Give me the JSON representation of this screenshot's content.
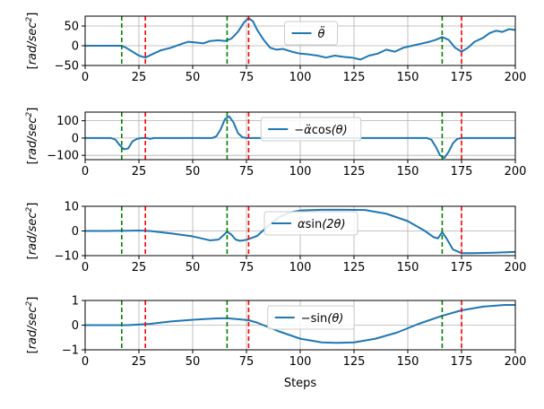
{
  "figure": {
    "xlabel": "Steps",
    "xlim": [
      0,
      200
    ],
    "xticks": [
      0,
      25,
      50,
      75,
      100,
      125,
      150,
      175,
      200
    ],
    "vlines_green": [
      17,
      66,
      166
    ],
    "vlines_red": [
      28,
      76,
      175
    ],
    "colors": {
      "series": "#1f77b4",
      "green_line": "#008000",
      "red_line": "#ff0000",
      "grid": "#b0b0b0"
    }
  },
  "chart_data": [
    {
      "type": "line",
      "ylabel": "[rad/sec^2]",
      "ylim": [
        -50,
        75
      ],
      "yticks": [
        -50,
        0,
        50
      ],
      "legend": {
        "label": "θ̈",
        "placement": "top-center"
      },
      "grid": true,
      "series": [
        {
          "name": "θ̈",
          "points": [
            [
              0,
              0
            ],
            [
              10,
              0
            ],
            [
              17,
              0
            ],
            [
              19,
              -5
            ],
            [
              22,
              -15
            ],
            [
              25,
              -25
            ],
            [
              28,
              -30
            ],
            [
              31,
              -22
            ],
            [
              35,
              -12
            ],
            [
              40,
              -5
            ],
            [
              45,
              5
            ],
            [
              48,
              10
            ],
            [
              52,
              8
            ],
            [
              55,
              6
            ],
            [
              58,
              12
            ],
            [
              62,
              14
            ],
            [
              65,
              12
            ],
            [
              68,
              18
            ],
            [
              71,
              35
            ],
            [
              74,
              60
            ],
            [
              76,
              70
            ],
            [
              78,
              62
            ],
            [
              80,
              40
            ],
            [
              83,
              15
            ],
            [
              86,
              -5
            ],
            [
              89,
              -10
            ],
            [
              92,
              -8
            ],
            [
              96,
              -15
            ],
            [
              100,
              -20
            ],
            [
              104,
              -22
            ],
            [
              108,
              -25
            ],
            [
              112,
              -30
            ],
            [
              116,
              -25
            ],
            [
              120,
              -28
            ],
            [
              124,
              -30
            ],
            [
              128,
              -35
            ],
            [
              132,
              -25
            ],
            [
              136,
              -20
            ],
            [
              140,
              -10
            ],
            [
              144,
              -15
            ],
            [
              148,
              -5
            ],
            [
              152,
              0
            ],
            [
              156,
              5
            ],
            [
              160,
              10
            ],
            [
              163,
              15
            ],
            [
              166,
              22
            ],
            [
              169,
              15
            ],
            [
              172,
              -5
            ],
            [
              175,
              -15
            ],
            [
              178,
              -5
            ],
            [
              181,
              10
            ],
            [
              185,
              20
            ],
            [
              188,
              32
            ],
            [
              191,
              38
            ],
            [
              194,
              35
            ],
            [
              197,
              42
            ],
            [
              200,
              40
            ]
          ]
        }
      ]
    },
    {
      "type": "line",
      "ylabel": "[rad/sec^2]",
      "ylim": [
        -125,
        150
      ],
      "yticks": [
        -100,
        0,
        100
      ],
      "legend": {
        "label": "−α̈cos(θ)",
        "placement": "top-center"
      },
      "grid": true,
      "series": [
        {
          "name": "−α̈cos(θ)",
          "points": [
            [
              0,
              0
            ],
            [
              12,
              0
            ],
            [
              14,
              -8
            ],
            [
              16,
              -40
            ],
            [
              18,
              -65
            ],
            [
              20,
              -60
            ],
            [
              22,
              -20
            ],
            [
              24,
              -5
            ],
            [
              26,
              0
            ],
            [
              29,
              0
            ],
            [
              30,
              -5
            ],
            [
              32,
              0
            ],
            [
              59,
              0
            ],
            [
              61,
              10
            ],
            [
              63,
              50
            ],
            [
              65,
              110
            ],
            [
              67,
              125
            ],
            [
              69,
              90
            ],
            [
              71,
              30
            ],
            [
              73,
              5
            ],
            [
              75,
              0
            ],
            [
              159,
              0
            ],
            [
              161,
              -10
            ],
            [
              163,
              -50
            ],
            [
              165,
              -100
            ],
            [
              167,
              -115
            ],
            [
              169,
              -80
            ],
            [
              171,
              -30
            ],
            [
              173,
              -5
            ],
            [
              175,
              0
            ],
            [
              200,
              0
            ]
          ]
        }
      ]
    },
    {
      "type": "line",
      "ylabel": "[rad/sec^2]",
      "ylim": [
        -10,
        10
      ],
      "yticks": [
        -10,
        0,
        10
      ],
      "legend": {
        "label": "αsin(2θ)",
        "placement": "top-center"
      },
      "grid": true,
      "series": [
        {
          "name": "αsin(2θ)",
          "points": [
            [
              0,
              0
            ],
            [
              10,
              0
            ],
            [
              20,
              0.1
            ],
            [
              25,
              0.2
            ],
            [
              30,
              0
            ],
            [
              40,
              -1
            ],
            [
              50,
              -2.2
            ],
            [
              58,
              -3.8
            ],
            [
              62,
              -3.5
            ],
            [
              64,
              -2
            ],
            [
              66,
              -0.3
            ],
            [
              68,
              -1.5
            ],
            [
              70,
              -3.5
            ],
            [
              72,
              -4
            ],
            [
              75,
              -3.6
            ],
            [
              80,
              -2
            ],
            [
              85,
              2
            ],
            [
              90,
              5.5
            ],
            [
              95,
              7.5
            ],
            [
              100,
              8.3
            ],
            [
              110,
              8.6
            ],
            [
              120,
              8.6
            ],
            [
              130,
              8.5
            ],
            [
              140,
              7
            ],
            [
              150,
              4
            ],
            [
              158,
              0
            ],
            [
              162,
              -2.5
            ],
            [
              164,
              -3
            ],
            [
              166,
              -0.5
            ],
            [
              168,
              -3
            ],
            [
              171,
              -7.5
            ],
            [
              175,
              -9
            ],
            [
              180,
              -9
            ],
            [
              190,
              -8.8
            ],
            [
              200,
              -8.5
            ]
          ]
        }
      ]
    },
    {
      "type": "line",
      "ylabel": "[rad/sec^2]",
      "ylim": [
        -1,
        1
      ],
      "yticks": [
        -1,
        0,
        1
      ],
      "legend": {
        "label": "−sin(θ)",
        "placement": "top-center"
      },
      "grid": true,
      "series": [
        {
          "name": "−sin(θ)",
          "points": [
            [
              0,
              0
            ],
            [
              20,
              0
            ],
            [
              30,
              0.05
            ],
            [
              40,
              0.15
            ],
            [
              50,
              0.22
            ],
            [
              60,
              0.27
            ],
            [
              66,
              0.28
            ],
            [
              70,
              0.25
            ],
            [
              76,
              0.2
            ],
            [
              80,
              0.1
            ],
            [
              90,
              -0.25
            ],
            [
              100,
              -0.55
            ],
            [
              110,
              -0.7
            ],
            [
              117,
              -0.72
            ],
            [
              125,
              -0.7
            ],
            [
              135,
              -0.55
            ],
            [
              145,
              -0.3
            ],
            [
              155,
              0.05
            ],
            [
              166,
              0.38
            ],
            [
              175,
              0.6
            ],
            [
              185,
              0.75
            ],
            [
              195,
              0.82
            ],
            [
              200,
              0.82
            ]
          ]
        }
      ]
    }
  ]
}
